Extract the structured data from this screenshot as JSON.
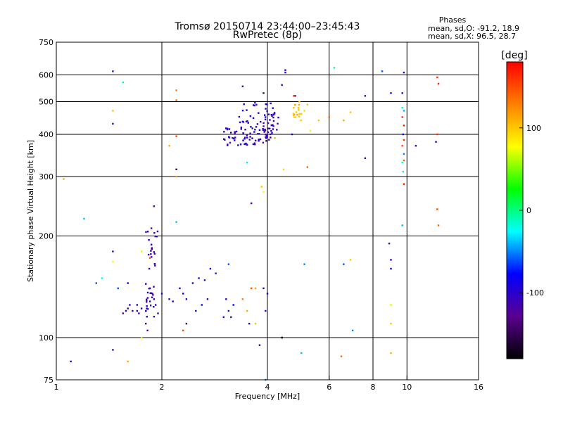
{
  "chart_data": {
    "type": "scatter",
    "title": "Tromsø 20150714 23:44:00–23:45:43",
    "subtitle": "RwPretec (8p)",
    "xlabel": "Frequency [MHz]",
    "ylabel": "Stationary phase Virtual Height [km]",
    "x_scale": "log",
    "y_scale": "log",
    "xlim": [
      1,
      16
    ],
    "ylim": [
      75,
      750
    ],
    "x_ticks": [
      1,
      2,
      4,
      6,
      8,
      10,
      16
    ],
    "y_ticks": [
      75,
      100,
      200,
      300,
      400,
      500,
      600,
      750
    ],
    "vertical_gridlines": [
      2,
      4,
      6,
      8,
      10
    ],
    "horizontal_gridlines": [
      100,
      200,
      300,
      400,
      500,
      600
    ],
    "stats_title": "Phases",
    "stats_line1": "mean, sd,O: -91.2, 18.9",
    "stats_line2": "mean, sd,X:  96.5, 28.7",
    "colorbar": {
      "label": "[deg]",
      "range": [
        -180,
        180
      ],
      "ticks": [
        100,
        0,
        -100
      ],
      "colormap": [
        "#000000",
        "#5a0090",
        "#0000ff",
        "#00ffff",
        "#00ff00",
        "#ffff00",
        "#ff8000",
        "#ff0000"
      ]
    },
    "points": [
      [
        1.45,
        615,
        -110
      ],
      [
        1.55,
        570,
        -10
      ],
      [
        1.45,
        470,
        100
      ],
      [
        1.45,
        430,
        -100
      ],
      [
        2.2,
        540,
        130
      ],
      [
        2.2,
        505,
        140
      ],
      [
        2.2,
        395,
        150
      ],
      [
        2.2,
        315,
        -150
      ],
      [
        2.2,
        300,
        120
      ],
      [
        2.1,
        370,
        110
      ],
      [
        1.05,
        295,
        110
      ],
      [
        1.2,
        225,
        -40
      ],
      [
        2.2,
        220,
        -40
      ],
      [
        1.9,
        245,
        -120
      ],
      [
        1.45,
        180,
        -110
      ],
      [
        1.45,
        168,
        80
      ],
      [
        1.75,
        180,
        70
      ],
      [
        1.85,
        172,
        140
      ],
      [
        1.3,
        145,
        -60
      ],
      [
        1.35,
        150,
        -20
      ],
      [
        1.6,
        145,
        -80
      ],
      [
        1.5,
        140,
        -60
      ],
      [
        1.65,
        120,
        -100
      ],
      [
        1.7,
        125,
        -90
      ],
      [
        1.72,
        118,
        -110
      ],
      [
        1.75,
        122,
        -95
      ],
      [
        1.8,
        120,
        -105
      ],
      [
        1.85,
        128,
        -100
      ],
      [
        1.6,
        122,
        -110
      ],
      [
        1.55,
        118,
        -120
      ],
      [
        1.62,
        125,
        -100
      ],
      [
        1.58,
        120,
        -110
      ],
      [
        1.7,
        120,
        -100
      ],
      [
        1.85,
        140,
        -100
      ],
      [
        1.88,
        135,
        -95
      ],
      [
        1.9,
        130,
        -100
      ],
      [
        1.92,
        125,
        -110
      ],
      [
        1.95,
        118,
        -100
      ],
      [
        2.0,
        135,
        -100
      ],
      [
        2.1,
        130,
        -110
      ],
      [
        2.15,
        128,
        -95
      ],
      [
        2.3,
        135,
        -80
      ],
      [
        2.25,
        140,
        -90
      ],
      [
        2.35,
        130,
        -100
      ],
      [
        2.45,
        145,
        -100
      ],
      [
        2.55,
        150,
        -100
      ],
      [
        2.65,
        148,
        -95
      ],
      [
        2.75,
        160,
        -90
      ],
      [
        2.85,
        155,
        -70
      ],
      [
        3.1,
        165,
        -60
      ],
      [
        2.6,
        125,
        -80
      ],
      [
        2.5,
        120,
        -90
      ],
      [
        2.7,
        130,
        -100
      ],
      [
        1.8,
        110,
        -120
      ],
      [
        1.82,
        105,
        -130
      ],
      [
        1.75,
        100,
        90
      ],
      [
        3.0,
        115,
        -110
      ],
      [
        3.1,
        120,
        -100
      ],
      [
        3.2,
        125,
        -80
      ],
      [
        3.15,
        115,
        -110
      ],
      [
        3.05,
        130,
        -100
      ],
      [
        3.4,
        130,
        130
      ],
      [
        3.5,
        120,
        110
      ],
      [
        3.55,
        110,
        -110
      ],
      [
        3.6,
        140,
        150
      ],
      [
        3.7,
        140,
        110
      ],
      [
        3.9,
        140,
        -110
      ],
      [
        4.0,
        135,
        -100
      ],
      [
        3.95,
        120,
        -100
      ],
      [
        2.3,
        105,
        150
      ],
      [
        2.35,
        110,
        -140
      ],
      [
        3.7,
        110,
        100
      ],
      [
        3.8,
        95,
        -110
      ],
      [
        4.4,
        100,
        -150
      ],
      [
        5.0,
        90,
        -40
      ],
      [
        3.95,
        75,
        -50
      ],
      [
        1.1,
        85,
        -100
      ],
      [
        1.45,
        92,
        -110
      ],
      [
        1.6,
        85,
        110
      ],
      [
        6.5,
        88,
        140
      ],
      [
        7.0,
        105,
        -50
      ],
      [
        9.0,
        90,
        110
      ],
      [
        9.0,
        110,
        100
      ],
      [
        9.0,
        125,
        70
      ],
      [
        9.0,
        170,
        -100
      ],
      [
        8.9,
        190,
        -110
      ],
      [
        9.0,
        160,
        -80
      ],
      [
        4.7,
        400,
        -100
      ],
      [
        4.9,
        480,
        100
      ],
      [
        5.1,
        470,
        90
      ],
      [
        5.2,
        490,
        100
      ],
      [
        5.0,
        460,
        100
      ],
      [
        4.8,
        450,
        100
      ],
      [
        4.5,
        610,
        -100
      ],
      [
        4.5,
        620,
        -110
      ],
      [
        4.4,
        560,
        -100
      ],
      [
        4.8,
        520,
        -130
      ],
      [
        4.75,
        520,
        150
      ],
      [
        5.3,
        410,
        70
      ],
      [
        5.6,
        440,
        100
      ],
      [
        6.0,
        450,
        140
      ],
      [
        6.6,
        440,
        110
      ],
      [
        6.9,
        465,
        100
      ],
      [
        6.2,
        630,
        -10
      ],
      [
        7.6,
        520,
        -100
      ],
      [
        7.6,
        340,
        -110
      ],
      [
        6.6,
        165,
        -60
      ],
      [
        6.9,
        170,
        100
      ],
      [
        5.2,
        320,
        140
      ],
      [
        4.45,
        315,
        90
      ],
      [
        3.9,
        270,
        80
      ],
      [
        3.85,
        280,
        100
      ],
      [
        3.6,
        250,
        -120
      ],
      [
        3.5,
        330,
        -30
      ],
      [
        3.4,
        555,
        -110
      ],
      [
        3.9,
        530,
        -150
      ],
      [
        4.2,
        390,
        110
      ],
      [
        5.1,
        165,
        -50
      ],
      [
        4.4,
        100,
        -170
      ],
      [
        8.5,
        615,
        -60
      ],
      [
        9.0,
        530,
        -80
      ],
      [
        9.7,
        530,
        -100
      ],
      [
        9.8,
        610,
        -110
      ],
      [
        9.7,
        480,
        -20
      ],
      [
        9.8,
        470,
        -40
      ],
      [
        9.7,
        450,
        160
      ],
      [
        9.8,
        425,
        170
      ],
      [
        9.75,
        400,
        -80
      ],
      [
        9.8,
        385,
        160
      ],
      [
        9.7,
        370,
        150
      ],
      [
        9.8,
        350,
        -50
      ],
      [
        9.8,
        335,
        140
      ],
      [
        9.7,
        330,
        -20
      ],
      [
        9.75,
        310,
        -30
      ],
      [
        9.8,
        285,
        170
      ],
      [
        9.7,
        215,
        -40
      ],
      [
        10.6,
        370,
        -100
      ],
      [
        12.2,
        590,
        160
      ],
      [
        12.3,
        565,
        170
      ],
      [
        12.2,
        400,
        160
      ],
      [
        12.1,
        380,
        -110
      ],
      [
        12.2,
        240,
        150
      ],
      [
        12.3,
        215,
        140
      ]
    ],
    "clusters": [
      {
        "x_range": [
          3.0,
          4.1
        ],
        "y_range": [
          370,
          420
        ],
        "n": 55,
        "phase": -105
      },
      {
        "x_range": [
          3.3,
          4.2
        ],
        "y_range": [
          400,
          500
        ],
        "n": 45,
        "phase": -100
      },
      {
        "x_range": [
          3.9,
          4.3
        ],
        "y_range": [
          390,
          460
        ],
        "n": 25,
        "phase": -110
      },
      {
        "x_range": [
          1.8,
          1.95
        ],
        "y_range": [
          160,
          220
        ],
        "n": 20,
        "phase": -110
      },
      {
        "x_range": [
          1.8,
          1.9
        ],
        "y_range": [
          115,
          145
        ],
        "n": 20,
        "phase": -105
      },
      {
        "x_range": [
          4.7,
          5.0
        ],
        "y_range": [
          440,
          500
        ],
        "n": 15,
        "phase": 105
      }
    ]
  }
}
